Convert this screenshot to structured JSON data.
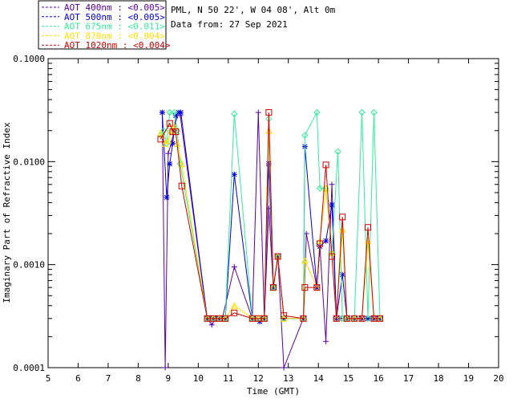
{
  "header": {
    "site": "PML, N 50 22', W 04 08', Alt 0m",
    "date": "Data from: 27 Sep 2021"
  },
  "chart_data": {
    "type": "line",
    "title": "",
    "xlabel": "Time (GMT)",
    "ylabel": "Imaginary Part of Refractive Index",
    "xlim": [
      5,
      20
    ],
    "ylim": [
      0.0001,
      0.1
    ],
    "yscale": "log",
    "x_ticks": [
      "5",
      "6",
      "7",
      "8",
      "9",
      "10",
      "11",
      "12",
      "13",
      "14",
      "15",
      "16",
      "17",
      "18",
      "19",
      "20"
    ],
    "y_ticks": [
      "0.0001",
      "0.0010",
      "0.0100",
      "0.1000"
    ],
    "legend": [
      {
        "label": "AOT  400nm : <0.005>",
        "color": "#5a00a0"
      },
      {
        "label": "AOT  500nm : <0.005>",
        "color": "#0000dd"
      },
      {
        "label": "AOT  675nm : <0.011>",
        "color": "#33ee99"
      },
      {
        "label": "AOT  870nm : <0.004>",
        "color": "#ffdd00"
      },
      {
        "label": "AOT 1020nm : <0.004>",
        "color": "#cc0000"
      }
    ],
    "series": [
      {
        "name": "400nm",
        "color": "#5a00a0",
        "marker": "plus",
        "points": [
          [
            8.8,
            0.03
          ],
          [
            8.9,
            0.0001
          ],
          [
            9.0,
            0.012
          ],
          [
            9.1,
            0.015
          ],
          [
            9.2,
            0.02
          ],
          [
            9.3,
            0.028
          ],
          [
            9.4,
            0.028
          ],
          [
            10.3,
            0.0003
          ],
          [
            10.45,
            0.00026
          ],
          [
            10.6,
            0.0003
          ],
          [
            10.8,
            0.0003
          ],
          [
            11.2,
            0.00095
          ],
          [
            11.8,
            0.0003
          ],
          [
            12.0,
            0.03
          ],
          [
            12.2,
            0.0003
          ],
          [
            12.35,
            0.0035
          ],
          [
            12.5,
            0.0006
          ],
          [
            12.65,
            0.0012
          ],
          [
            12.85,
            0.0001
          ],
          [
            13.5,
            0.0003
          ],
          [
            13.6,
            0.002
          ],
          [
            13.95,
            0.0006
          ],
          [
            14.05,
            0.0015
          ],
          [
            14.25,
            0.00018
          ],
          [
            14.45,
            0.006
          ],
          [
            14.6,
            0.0003
          ],
          [
            14.75,
            0.0003
          ],
          [
            14.85,
            0.0003
          ],
          [
            15.0,
            0.0003
          ],
          [
            15.2,
            0.0003
          ],
          [
            15.4,
            0.0003
          ],
          [
            15.6,
            0.0003
          ],
          [
            15.8,
            0.0003
          ],
          [
            16.0,
            0.0003
          ]
        ]
      },
      {
        "name": "500nm",
        "color": "#0000dd",
        "marker": "star",
        "points": [
          [
            8.8,
            0.03
          ],
          [
            8.95,
            0.0045
          ],
          [
            9.05,
            0.0095
          ],
          [
            9.15,
            0.015
          ],
          [
            9.25,
            0.028
          ],
          [
            9.35,
            0.03
          ],
          [
            9.42,
            0.03
          ],
          [
            10.3,
            0.0003
          ],
          [
            10.5,
            0.0003
          ],
          [
            10.7,
            0.0003
          ],
          [
            10.9,
            0.0003
          ],
          [
            11.2,
            0.0075
          ],
          [
            11.8,
            0.0003
          ],
          [
            12.05,
            0.00028
          ],
          [
            12.2,
            0.0003
          ],
          [
            12.35,
            0.0095
          ],
          [
            12.5,
            0.0006
          ],
          [
            12.65,
            0.0012
          ],
          [
            12.85,
            0.0003
          ],
          [
            13.5,
            0.0003
          ],
          [
            13.55,
            0.014
          ],
          [
            13.95,
            0.0006
          ],
          [
            14.05,
            0.0015
          ],
          [
            14.25,
            0.0017
          ],
          [
            14.45,
            0.0038
          ],
          [
            14.6,
            0.0003
          ],
          [
            14.8,
            0.0008
          ],
          [
            14.95,
            0.0003
          ],
          [
            15.2,
            0.0003
          ],
          [
            15.45,
            0.0003
          ],
          [
            15.65,
            0.0003
          ],
          [
            15.85,
            0.0003
          ],
          [
            16.05,
            0.0003
          ]
        ]
      },
      {
        "name": "675nm",
        "color": "#33ee99",
        "marker": "diamond",
        "points": [
          [
            8.75,
            0.018
          ],
          [
            8.85,
            0.02
          ],
          [
            8.95,
            0.015
          ],
          [
            9.05,
            0.03
          ],
          [
            9.2,
            0.03
          ],
          [
            9.3,
            0.02
          ],
          [
            9.4,
            0.0095
          ],
          [
            10.3,
            0.0003
          ],
          [
            10.5,
            0.0003
          ],
          [
            10.7,
            0.0003
          ],
          [
            10.9,
            0.0003
          ],
          [
            11.2,
            0.029
          ],
          [
            11.8,
            0.0003
          ],
          [
            12.0,
            0.0003
          ],
          [
            12.2,
            0.0003
          ],
          [
            12.35,
            0.026
          ],
          [
            12.5,
            0.0006
          ],
          [
            12.65,
            0.0012
          ],
          [
            12.85,
            0.0003
          ],
          [
            13.5,
            0.0003
          ],
          [
            13.55,
            0.018
          ],
          [
            13.95,
            0.03
          ],
          [
            14.05,
            0.0055
          ],
          [
            14.25,
            0.0055
          ],
          [
            14.45,
            0.0013
          ],
          [
            14.65,
            0.0125
          ],
          [
            14.8,
            0.0003
          ],
          [
            14.95,
            0.0003
          ],
          [
            15.2,
            0.0003
          ],
          [
            15.45,
            0.03
          ],
          [
            15.65,
            0.0003
          ],
          [
            15.85,
            0.03
          ],
          [
            16.05,
            0.0003
          ]
        ]
      },
      {
        "name": "870nm",
        "color": "#ffdd00",
        "marker": "triangle",
        "points": [
          [
            8.75,
            0.019
          ],
          [
            8.9,
            0.015
          ],
          [
            9.0,
            0.016
          ],
          [
            9.1,
            0.02
          ],
          [
            9.2,
            0.022
          ],
          [
            9.3,
            0.015
          ],
          [
            9.45,
            0.0095
          ],
          [
            10.3,
            0.0003
          ],
          [
            10.5,
            0.0003
          ],
          [
            10.7,
            0.0003
          ],
          [
            10.9,
            0.0003
          ],
          [
            11.2,
            0.0004
          ],
          [
            11.8,
            0.0003
          ],
          [
            12.0,
            0.0003
          ],
          [
            12.2,
            0.0003
          ],
          [
            12.35,
            0.02
          ],
          [
            12.5,
            0.0006
          ],
          [
            12.65,
            0.0012
          ],
          [
            12.85,
            0.0003
          ],
          [
            13.5,
            0.0003
          ],
          [
            13.55,
            0.0011
          ],
          [
            13.95,
            0.0006
          ],
          [
            14.05,
            0.0017
          ],
          [
            14.25,
            0.0055
          ],
          [
            14.45,
            0.0013
          ],
          [
            14.6,
            0.0003
          ],
          [
            14.8,
            0.0022
          ],
          [
            14.95,
            0.0003
          ],
          [
            15.2,
            0.0003
          ],
          [
            15.45,
            0.0003
          ],
          [
            15.65,
            0.0017
          ],
          [
            15.85,
            0.0003
          ],
          [
            16.05,
            0.0003
          ]
        ]
      },
      {
        "name": "1020nm",
        "color": "#cc0000",
        "marker": "square",
        "points": [
          [
            8.75,
            0.0165
          ],
          [
            9.05,
            0.0235
          ],
          [
            9.15,
            0.0195
          ],
          [
            9.25,
            0.0195
          ],
          [
            9.45,
            0.0058
          ],
          [
            10.3,
            0.0003
          ],
          [
            10.5,
            0.0003
          ],
          [
            10.7,
            0.0003
          ],
          [
            10.9,
            0.0003
          ],
          [
            11.2,
            0.00034
          ],
          [
            11.8,
            0.0003
          ],
          [
            12.0,
            0.0003
          ],
          [
            12.2,
            0.0003
          ],
          [
            12.35,
            0.03
          ],
          [
            12.5,
            0.0006
          ],
          [
            12.65,
            0.0012
          ],
          [
            12.85,
            0.00032
          ],
          [
            13.5,
            0.0003
          ],
          [
            13.55,
            0.0006
          ],
          [
            13.95,
            0.0006
          ],
          [
            14.05,
            0.0016
          ],
          [
            14.25,
            0.0093
          ],
          [
            14.45,
            0.0012
          ],
          [
            14.6,
            0.0003
          ],
          [
            14.8,
            0.0029
          ],
          [
            14.95,
            0.0003
          ],
          [
            15.2,
            0.0003
          ],
          [
            15.45,
            0.0003
          ],
          [
            15.65,
            0.0023
          ],
          [
            15.85,
            0.0003
          ],
          [
            16.05,
            0.0003
          ]
        ]
      }
    ]
  }
}
